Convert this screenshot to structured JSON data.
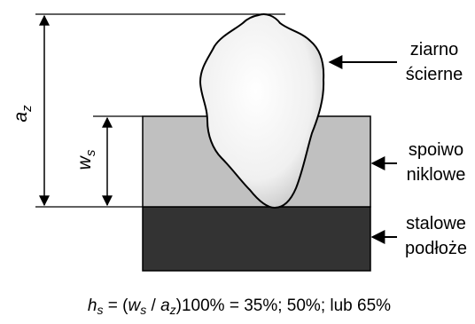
{
  "labels": {
    "grain_line1": "ziarno",
    "grain_line2": "ścierne",
    "binder_line1": "spoiwo",
    "binder_line2": "niklowe",
    "substrate_line1": "stalowe",
    "substrate_line2": "podłoże"
  },
  "dimensions": {
    "az_main": "a",
    "az_sub": "z",
    "ws_main": "w",
    "ws_sub": "s"
  },
  "formula": {
    "h": "h",
    "h_sub": "s",
    "eq_open": " = (",
    "w": "w",
    "w_sub": "s",
    "slash": " / ",
    "a": "a",
    "a_sub": "z",
    "rest": ")100% = 35%; 50%; lub 65%"
  },
  "colors": {
    "binder_fill": "#c0c0c0",
    "substrate_fill": "#333333",
    "grain_fill": "#f2f2f2",
    "stroke": "#000000"
  }
}
